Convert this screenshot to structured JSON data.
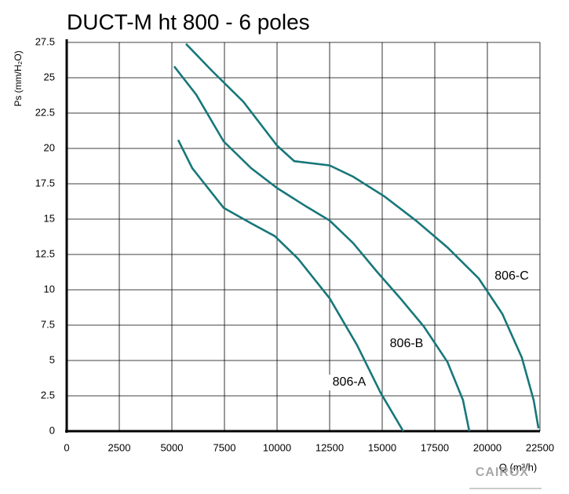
{
  "chart_data": {
    "type": "line",
    "title": "DUCT-M ht 800 - 6 poles",
    "y_label": "Ps (mm/H₂O)",
    "x_label": "Q (m³/h)",
    "logo": "CAIROX",
    "xlim": [
      0,
      22500
    ],
    "xticks": [
      0,
      2500,
      5000,
      7500,
      10000,
      12500,
      15000,
      17500,
      20000,
      22500
    ],
    "ylim": [
      0,
      27.5
    ],
    "yticks": [
      0,
      2.5,
      5,
      7.5,
      10,
      12.5,
      15,
      17.5,
      20,
      22.5,
      25,
      27.5
    ],
    "grid": true,
    "series": [
      {
        "name": "806-A",
        "color": "#17777a",
        "x": [
          5300,
          5970,
          7460,
          8770,
          9890,
          11000,
          12500,
          13800,
          14930,
          16000
        ],
        "values": [
          20.6,
          18.6,
          15.8,
          14.7,
          13.8,
          12.2,
          9.4,
          6.1,
          2.7,
          0
        ]
      },
      {
        "name": "806-B",
        "color": "#17777a",
        "x": [
          5110,
          6160,
          7460,
          8770,
          10000,
          11380,
          12500,
          13620,
          14740,
          15860,
          16980,
          18100,
          18840,
          19140
        ],
        "values": [
          25.8,
          23.8,
          20.5,
          18.6,
          17.2,
          15.9,
          14.9,
          13.3,
          11.3,
          9.4,
          7.4,
          4.9,
          2.2,
          0
        ]
      },
      {
        "name": "806-C",
        "color": "#17777a",
        "x": [
          5670,
          6900,
          8400,
          10000,
          10820,
          12500,
          13620,
          15110,
          16600,
          18100,
          19590,
          20710,
          21640,
          22200,
          22430
        ],
        "values": [
          27.4,
          25.5,
          23.3,
          20.2,
          19.1,
          18.8,
          18,
          16.6,
          14.9,
          13,
          10.8,
          8.3,
          5.2,
          2.2,
          0.2
        ]
      }
    ]
  }
}
